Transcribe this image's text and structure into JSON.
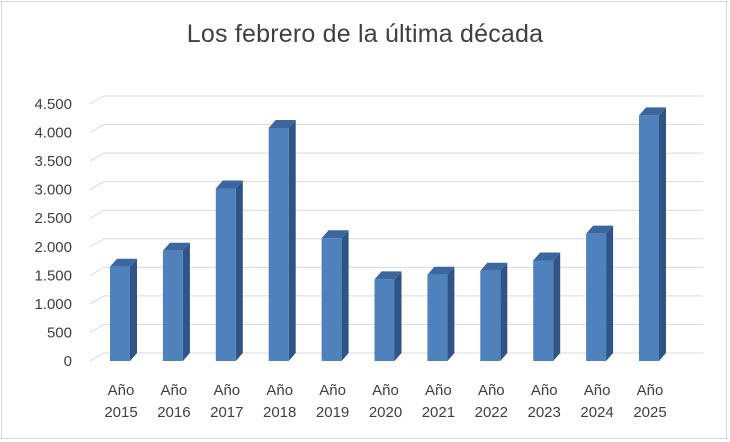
{
  "chart_data": {
    "type": "bar",
    "title": "Los febrero de la última década",
    "categories": [
      [
        "Año",
        "2015"
      ],
      [
        "Año",
        "2016"
      ],
      [
        "Año",
        "2017"
      ],
      [
        "Año",
        "2018"
      ],
      [
        "Año",
        "2019"
      ],
      [
        "Año",
        "2020"
      ],
      [
        "Año",
        "2021"
      ],
      [
        "Año",
        "2022"
      ],
      [
        "Año",
        "2023"
      ],
      [
        "Año",
        "2024"
      ],
      [
        "Año",
        "2025"
      ]
    ],
    "values": [
      1650,
      1930,
      3020,
      4080,
      2150,
      1430,
      1510,
      1580,
      1760,
      2230,
      4300
    ],
    "ylim": [
      0,
      4500
    ],
    "yticks": [
      0,
      500,
      1000,
      1500,
      2000,
      2500,
      3000,
      3500,
      4000,
      4500
    ],
    "ytick_labels": [
      "0",
      "500",
      "1.000",
      "1.500",
      "2.000",
      "2.500",
      "3.000",
      "3.500",
      "4.000",
      "4.500"
    ],
    "grid": true,
    "legend": "none",
    "style": "3d-column",
    "colors": {
      "bar_front": "#4f81bd",
      "bar_side": "#2f5486",
      "bar_top": "#3b679e",
      "grid": "#d9d9d9",
      "text": "#404040"
    }
  }
}
